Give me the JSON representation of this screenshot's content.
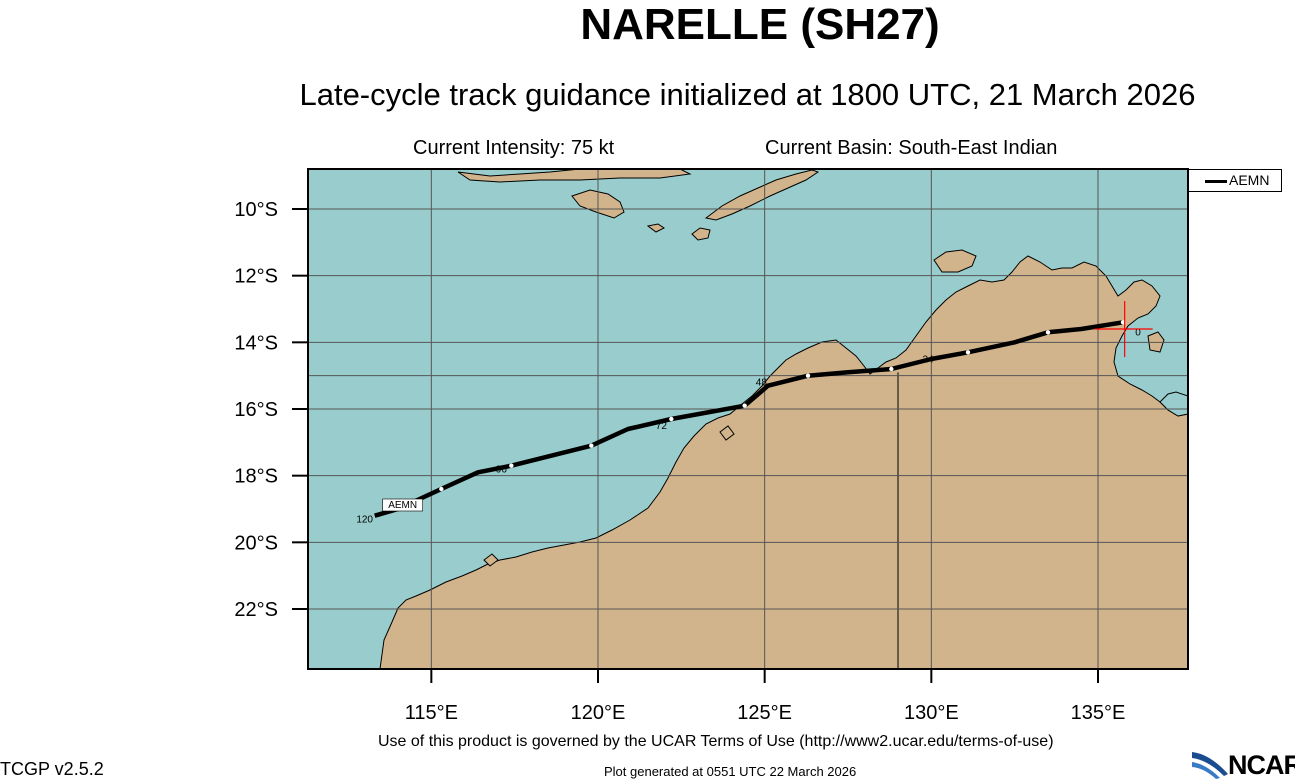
{
  "header": {
    "title": "NARELLE (SH27)",
    "subtitle": "Late-cycle track guidance initialized at 1800 UTC, 21 March 2026",
    "intensity": "Current Intensity: 75 kt",
    "basin": "Current Basin: South-East Indian"
  },
  "map": {
    "lon_range": [
      111.3,
      137.7
    ],
    "lat_range": [
      -23.8,
      -8.8
    ],
    "lon_ticks": [
      115,
      120,
      125,
      130,
      135
    ],
    "lat_ticks": [
      -10,
      -12,
      -14,
      -16,
      -18,
      -20,
      -22
    ],
    "lon_tick_labels": [
      "115°E",
      "120°E",
      "125°E",
      "130°E",
      "135°E"
    ],
    "lat_tick_labels": [
      "10°S",
      "12°S",
      "14°S",
      "16°S",
      "18°S",
      "20°S",
      "22°S"
    ],
    "ocean_color": "#99cccc",
    "land_color": "#d2b48c",
    "grid_color": "#555555",
    "border_lon": 129.0,
    "current_position": {
      "lon": 135.8,
      "lat": -13.6,
      "marker_color": "#ff0000"
    }
  },
  "legend": {
    "label": "AEMN"
  },
  "tracks": [
    {
      "name": "AEMN",
      "points": [
        {
          "lon": 135.75,
          "lat": -13.4
        },
        {
          "lon": 134.5,
          "lat": -13.6
        },
        {
          "lon": 133.5,
          "lat": -13.7
        },
        {
          "lon": 132.5,
          "lat": -14.0
        },
        {
          "lon": 131.1,
          "lat": -14.3
        },
        {
          "lon": 130.0,
          "lat": -14.5
        },
        {
          "lon": 128.8,
          "lat": -14.8
        },
        {
          "lon": 127.5,
          "lat": -14.9
        },
        {
          "lon": 126.3,
          "lat": -15.0
        },
        {
          "lon": 125.1,
          "lat": -15.3
        },
        {
          "lon": 124.4,
          "lat": -15.9
        },
        {
          "lon": 122.2,
          "lat": -16.3
        },
        {
          "lon": 120.9,
          "lat": -16.6
        },
        {
          "lon": 119.8,
          "lat": -17.1
        },
        {
          "lon": 117.4,
          "lat": -17.7
        },
        {
          "lon": 116.4,
          "lat": -17.9
        },
        {
          "lon": 115.3,
          "lat": -18.4
        },
        {
          "lon": 114.0,
          "lat": -19.0
        },
        {
          "lon": 113.3,
          "lat": -19.2
        }
      ],
      "markers": [
        {
          "lon": 135.75,
          "lat": -13.4
        },
        {
          "lon": 133.5,
          "lat": -13.7
        },
        {
          "lon": 131.1,
          "lat": -14.3
        },
        {
          "lon": 128.8,
          "lat": -14.8
        },
        {
          "lon": 126.3,
          "lat": -15.0
        },
        {
          "lon": 124.4,
          "lat": -15.9
        },
        {
          "lon": 122.2,
          "lat": -16.3
        },
        {
          "lon": 119.8,
          "lat": -17.1
        },
        {
          "lon": 117.4,
          "lat": -17.7
        },
        {
          "lon": 115.3,
          "lat": -18.4
        }
      ],
      "hour_labels": [
        {
          "text": "0",
          "lon": 136.2,
          "lat": -13.8
        },
        {
          "text": "24",
          "lon": 129.9,
          "lat": -14.6
        },
        {
          "text": "48",
          "lon": 124.9,
          "lat": -15.3
        },
        {
          "text": "72",
          "lon": 121.9,
          "lat": -16.6
        },
        {
          "text": "96",
          "lon": 117.1,
          "lat": -17.9
        },
        {
          "text": "120",
          "lon": 113.0,
          "lat": -19.4
        }
      ],
      "end_label": {
        "text": "AEMN",
        "lon": 113.6,
        "lat": -19.0
      }
    }
  ],
  "footer": {
    "terms": "Use of this product is governed by the UCAR Terms of Use (http://www2.ucar.edu/terms-of-use)",
    "generated": "Plot generated at 0551 UTC   22 March 2026",
    "version": "TCGP v2.5.2",
    "logo_text": "NCAR"
  }
}
